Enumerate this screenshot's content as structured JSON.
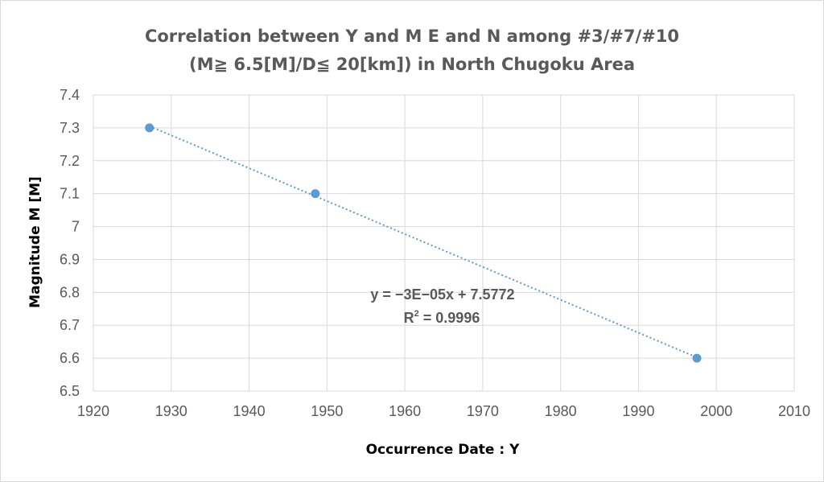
{
  "chart_data": {
    "type": "scatter",
    "title_line1": "Correlation between Y and M  E and N among #3/#7/#10",
    "title_line2": "(M≧ 6.5[M]/D≦ 20[km]) in North Chugoku Area",
    "xlabel": "Occurrence Date : Y",
    "ylabel": "Magnitude M [M]",
    "xlim": [
      1920,
      2010
    ],
    "ylim": [
      6.5,
      7.4
    ],
    "xticks": [
      "1920",
      "1930",
      "1940",
      "1950",
      "1960",
      "1970",
      "1980",
      "1990",
      "2000",
      "2010"
    ],
    "yticks": [
      "6.5",
      "6.6",
      "6.7",
      "6.8",
      "6.9",
      "7",
      "7.1",
      "7.2",
      "7.3",
      "7.4"
    ],
    "grid": true,
    "points": [
      {
        "x": 1927.2,
        "y": 7.3
      },
      {
        "x": 1948.5,
        "y": 7.1
      },
      {
        "x": 1997.5,
        "y": 6.6
      }
    ],
    "trendline": {
      "type": "linear",
      "style": "dotted",
      "equation": "y = −3E−05x + 7.5772",
      "r2_label": "R",
      "r2_sup": "2",
      "r2_value": " = 0.9996"
    },
    "colors": {
      "marker": "#5b9bd5",
      "trendline": "#5b9bd5",
      "grid": "#d9d9d9",
      "text": "#595959"
    }
  }
}
